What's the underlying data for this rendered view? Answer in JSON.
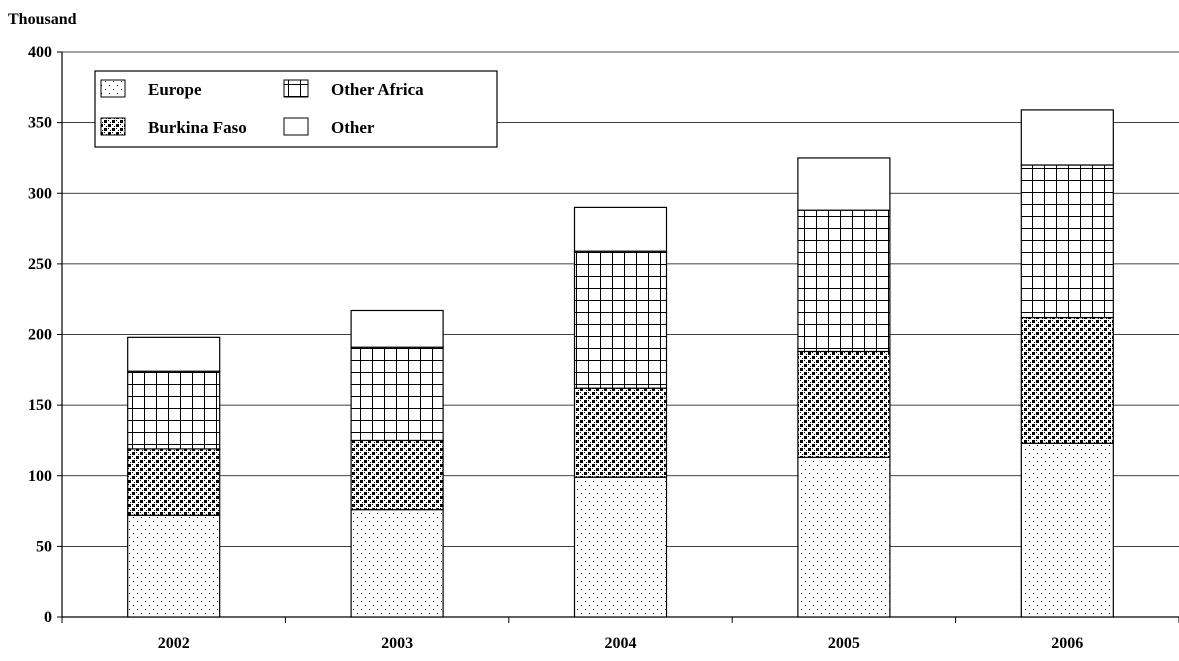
{
  "chart_data": {
    "type": "bar",
    "stacked": true,
    "ylabel": "Thousand",
    "ylim": [
      0,
      400
    ],
    "yticks": [
      0,
      50,
      100,
      150,
      200,
      250,
      300,
      350,
      400
    ],
    "grid": true,
    "legend_position": "top-left",
    "categories": [
      "2002",
      "2003",
      "2004",
      "2005",
      "2006"
    ],
    "series": [
      {
        "name": "Europe",
        "pattern": "dots",
        "values": [
          72,
          76,
          99,
          113,
          123
        ]
      },
      {
        "name": "Burkina Faso",
        "pattern": "checker",
        "values": [
          47,
          49,
          63,
          75,
          89
        ]
      },
      {
        "name": "Other Africa",
        "pattern": "grid",
        "values": [
          55,
          66,
          97,
          100,
          108
        ]
      },
      {
        "name": "Other",
        "pattern": "empty",
        "values": [
          24,
          26,
          31,
          37,
          39
        ]
      }
    ],
    "legend_order": [
      "Europe",
      "Other Africa",
      "Burkina Faso",
      "Other"
    ],
    "colors": {
      "fill": "#ffffff",
      "ink": "#000000",
      "grid": "#000000"
    }
  }
}
